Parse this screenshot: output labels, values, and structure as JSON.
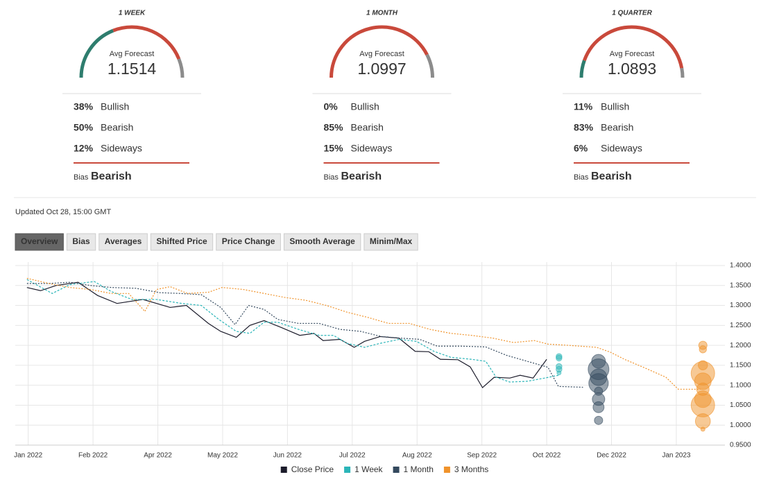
{
  "gauge_colors": {
    "bullish": "#2e7d6e",
    "bearish": "#c9493b",
    "sideways": "#8c8c8c"
  },
  "gauges": [
    {
      "period": "1 WEEK",
      "avg_label": "Avg Forecast",
      "avg": "1.1514",
      "bullish": {
        "value": 38,
        "label": "38%",
        "name": "Bullish"
      },
      "bearish": {
        "value": 50,
        "label": "50%",
        "name": "Bearish"
      },
      "sideways": {
        "value": 12,
        "label": "12%",
        "name": "Sideways"
      },
      "bias_label": "Bias",
      "bias": "Bearish"
    },
    {
      "period": "1 MONTH",
      "avg_label": "Avg Forecast",
      "avg": "1.0997",
      "bullish": {
        "value": 0,
        "label": "0%",
        "name": "Bullish"
      },
      "bearish": {
        "value": 85,
        "label": "85%",
        "name": "Bearish"
      },
      "sideways": {
        "value": 15,
        "label": "15%",
        "name": "Sideways"
      },
      "bias_label": "Bias",
      "bias": "Bearish"
    },
    {
      "period": "1 QUARTER",
      "avg_label": "Avg Forecast",
      "avg": "1.0893",
      "bullish": {
        "value": 11,
        "label": "11%",
        "name": "Bullish"
      },
      "bearish": {
        "value": 83,
        "label": "83%",
        "name": "Bearish"
      },
      "sideways": {
        "value": 6,
        "label": "6%",
        "name": "Sideways"
      },
      "bias_label": "Bias",
      "bias": "Bearish"
    }
  ],
  "updated": "Updated Oct 28, 15:00 GMT",
  "tabs": [
    "Overview",
    "Bias",
    "Averages",
    "Shifted Price",
    "Price Change",
    "Smooth Average",
    "Minim/Max"
  ],
  "active_tab": 0,
  "chart_data": {
    "type": "line",
    "grid": true,
    "xlim": [
      -0.2,
      10.75
    ],
    "xticks": [
      {
        "value": 0,
        "label": "Jan 2022"
      },
      {
        "value": 1,
        "label": "Feb 2022"
      },
      {
        "value": 2,
        "label": "Apr 2022"
      },
      {
        "value": 3,
        "label": "May 2022"
      },
      {
        "value": 4,
        "label": "Jun 2022"
      },
      {
        "value": 5,
        "label": "Jul 2022"
      },
      {
        "value": 6,
        "label": "Aug 2022"
      },
      {
        "value": 7,
        "label": "Sep 2022"
      },
      {
        "value": 8,
        "label": "Oct 2022"
      },
      {
        "value": 9,
        "label": "Dec 2022"
      },
      {
        "value": 10,
        "label": "Jan 2023"
      }
    ],
    "ylim": [
      0.95,
      1.4
    ],
    "yticks": [
      {
        "value": 0.95,
        "label": "0.9500"
      },
      {
        "value": 1.0,
        "label": "1.0000"
      },
      {
        "value": 1.05,
        "label": "1.0500"
      },
      {
        "value": 1.1,
        "label": "1.1000"
      },
      {
        "value": 1.15,
        "label": "1.1500"
      },
      {
        "value": 1.2,
        "label": "1.2000"
      },
      {
        "value": 1.25,
        "label": "1.2500"
      },
      {
        "value": 1.3,
        "label": "1.3000"
      },
      {
        "value": 1.35,
        "label": "1.3500"
      },
      {
        "value": 1.4,
        "label": "1.4000"
      }
    ],
    "series": [
      {
        "name": "Close Price",
        "color": "#1c1c2b",
        "dash": "none",
        "x": [
          -0.02,
          0.19,
          0.43,
          0.77,
          1.07,
          1.37,
          1.77,
          2.19,
          2.44,
          2.78,
          2.97,
          3.21,
          3.42,
          3.64,
          3.9,
          4.19,
          4.41,
          4.55,
          4.81,
          5.03,
          5.19,
          5.43,
          5.72,
          5.97,
          6.18,
          6.36,
          6.63,
          6.82,
          7.01,
          7.19,
          7.43,
          7.59,
          7.79,
          8.0
        ],
        "values": [
          1.345,
          1.337,
          1.35,
          1.358,
          1.325,
          1.305,
          1.315,
          1.295,
          1.3,
          1.255,
          1.235,
          1.22,
          1.25,
          1.262,
          1.245,
          1.225,
          1.23,
          1.212,
          1.215,
          1.195,
          1.21,
          1.222,
          1.218,
          1.185,
          1.184,
          1.165,
          1.164,
          1.146,
          1.094,
          1.12,
          1.118,
          1.125,
          1.118,
          1.165
        ]
      },
      {
        "name": "1 Week",
        "color": "#2bb5b8",
        "dash": "3,2",
        "x": [
          -0.02,
          0.37,
          0.64,
          1.02,
          1.28,
          1.6,
          1.98,
          2.37,
          2.67,
          2.94,
          3.21,
          3.42,
          3.64,
          3.85,
          4.17,
          4.49,
          4.71,
          4.92,
          5.19,
          5.43,
          5.72,
          5.99,
          6.26,
          6.52,
          6.84,
          7.06,
          7.22,
          7.43,
          7.7,
          7.97,
          8.18
        ],
        "values": [
          1.365,
          1.33,
          1.352,
          1.36,
          1.335,
          1.315,
          1.315,
          1.305,
          1.3,
          1.265,
          1.235,
          1.23,
          1.258,
          1.258,
          1.24,
          1.225,
          1.225,
          1.205,
          1.195,
          1.205,
          1.215,
          1.21,
          1.185,
          1.17,
          1.165,
          1.16,
          1.12,
          1.108,
          1.11,
          1.118,
          1.125
        ],
        "bubble_x": 8.19,
        "bubble_values": [
          1.172,
          1.168,
          1.147,
          1.14,
          1.131
        ],
        "bubble_counts": [
          2,
          2,
          2,
          2,
          1
        ]
      },
      {
        "name": "1 Month",
        "color": "#34495e",
        "dash": "2,2",
        "x": [
          -0.02,
          0.32,
          0.64,
          0.96,
          1.28,
          1.66,
          2.03,
          2.35,
          2.67,
          2.97,
          3.19,
          3.4,
          3.64,
          3.85,
          4.17,
          4.49,
          4.81,
          5.13,
          5.45,
          5.75,
          6.04,
          6.31,
          6.68,
          7.06,
          7.38,
          7.7,
          8.02,
          8.18,
          8.56
        ],
        "values": [
          1.355,
          1.355,
          1.358,
          1.35,
          1.345,
          1.343,
          1.332,
          1.33,
          1.327,
          1.295,
          1.252,
          1.3,
          1.29,
          1.265,
          1.255,
          1.255,
          1.24,
          1.235,
          1.222,
          1.218,
          1.215,
          1.198,
          1.198,
          1.196,
          1.175,
          1.16,
          1.145,
          1.097,
          1.095
        ],
        "bubble_x": 8.8,
        "bubble_values": [
          1.16,
          1.14,
          1.12,
          1.105,
          1.085,
          1.065,
          1.045,
          1.012
        ],
        "bubble_counts": [
          11,
          25,
          16,
          22,
          4,
          9,
          7,
          4
        ]
      },
      {
        "name": "3 Months",
        "color": "#f0932b",
        "dash": "2,2",
        "x": [
          -0.02,
          0.32,
          0.64,
          0.96,
          1.28,
          1.55,
          1.8,
          1.98,
          2.19,
          2.46,
          2.78,
          2.99,
          3.32,
          3.64,
          3.96,
          4.28,
          4.6,
          4.92,
          5.24,
          5.56,
          5.88,
          6.2,
          6.52,
          6.84,
          7.17,
          7.49,
          7.81,
          8.02,
          8.34,
          8.77,
          8.98,
          9.2,
          9.52,
          9.84,
          10.03,
          10.37
        ],
        "values": [
          1.368,
          1.355,
          1.345,
          1.34,
          1.33,
          1.33,
          1.285,
          1.34,
          1.347,
          1.33,
          1.333,
          1.345,
          1.34,
          1.33,
          1.32,
          1.313,
          1.3,
          1.283,
          1.27,
          1.255,
          1.255,
          1.24,
          1.23,
          1.225,
          1.218,
          1.207,
          1.212,
          1.203,
          1.2,
          1.195,
          1.183,
          1.165,
          1.143,
          1.12,
          1.09,
          1.09
        ],
        "bubble_x": 10.41,
        "bubble_values": [
          1.2,
          1.19,
          1.15,
          1.13,
          1.11,
          1.09,
          1.065,
          1.05,
          1.01,
          0.99
        ],
        "bubble_counts": [
          4,
          3,
          5,
          32,
          16,
          9,
          16,
          32,
          13,
          1
        ]
      }
    ]
  }
}
